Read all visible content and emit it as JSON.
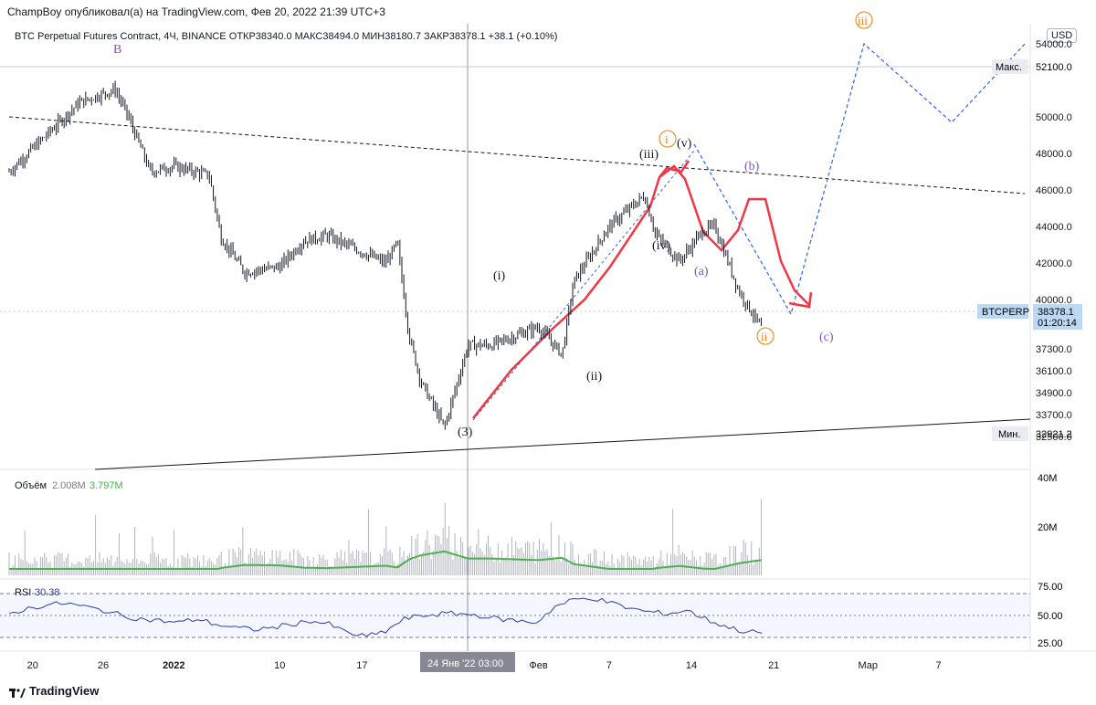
{
  "header": {
    "published": "ChampBoy опубликовал(а) на TradingView.com, Фев 20, 2022 21:39 UTC+3",
    "symbol_line": "BTC Perpetual Futures Contract, 4Ч, BINANCE",
    "open_label": "ОТКР",
    "open": "38340.0",
    "high_label": "МАКС",
    "high": "38494.0",
    "low_label": "МИН",
    "low": "38180.7",
    "close_label": "ЗАКР",
    "close": "38378.1",
    "change": "+38.1 (+0.10%)",
    "currency": "USD"
  },
  "chart_data": [
    {
      "type": "candlestick",
      "series_name": "BTCPERP",
      "y_ticks": [
        "54000.0",
        "52100.0",
        "50000.0",
        "48000.0",
        "46000.0",
        "44000.0",
        "42000.0",
        "40000.0",
        "38378.1",
        "37300.0",
        "36100.0",
        "34900.0",
        "33700.0",
        "32500.0"
      ],
      "y_range": [
        31800,
        54500
      ],
      "price_labels": [
        {
          "name": "Макс.",
          "value": "52100.0"
        },
        {
          "name": "BTCPERP",
          "value": "38378.1",
          "timer": "01:20:14"
        },
        {
          "name": "Мин.",
          "value": "32921.2"
        }
      ],
      "x_ticks": [
        "20",
        "26",
        "2022",
        "10",
        "17",
        "24 Янв '22  03:00",
        "Фев",
        "7",
        "14",
        "21",
        "Мар",
        "7"
      ],
      "crosshair_x_label": "24 Янв '22  03:00",
      "price_path": [
        [
          "Dec 18",
          47000
        ],
        [
          "Dec 21",
          48900
        ],
        [
          "Dec 24",
          50800
        ],
        [
          "Dec 27",
          51500
        ],
        [
          "Dec 28",
          50200
        ],
        [
          "Dec 30",
          47000
        ],
        [
          "Jan 1",
          47300
        ],
        [
          "Jan 4",
          46800
        ],
        [
          "Jan 5",
          43400
        ],
        [
          "Jan 7",
          41500
        ],
        [
          "Jan 10",
          41800
        ],
        [
          "Jan 12",
          43200
        ],
        [
          "Jan 14",
          43500
        ],
        [
          "Jan 17",
          42600
        ],
        [
          "Jan 19",
          42000
        ],
        [
          "Jan 20",
          43100
        ],
        [
          "Jan 21",
          38000
        ],
        [
          "Jan 22",
          35500
        ],
        [
          "Jan 24",
          33000
        ],
        [
          "Jan 26",
          37500
        ],
        [
          "Jan 28",
          37500
        ],
        [
          "Feb 1",
          38500
        ],
        [
          "Feb 3",
          37000
        ],
        [
          "Feb 4",
          41000
        ],
        [
          "Feb 7",
          44000
        ],
        [
          "Feb 10",
          45700
        ],
        [
          "Feb 11",
          43500
        ],
        [
          "Feb 13",
          42100
        ],
        [
          "Feb 15",
          43800
        ],
        [
          "Feb 16",
          44000
        ],
        [
          "Feb 18",
          40500
        ],
        [
          "Feb 20",
          38378
        ]
      ],
      "annotations": {
        "wave_labels": [
          "B",
          "(3)",
          "(i)",
          "(ii)",
          "(iii)",
          "(iv)",
          "(v)",
          "(a)",
          "(b)",
          "(c)",
          "i",
          "ii",
          "iii"
        ]
      }
    },
    {
      "type": "bar",
      "series_name": "Объём",
      "values_label": [
        "2.008M",
        "3.797M"
      ],
      "y_ticks": [
        "40M",
        "20M"
      ]
    },
    {
      "type": "line",
      "series_name": "RSI",
      "last_value": "30.38",
      "y_ticks": [
        "75.00",
        "50.00",
        "25.00"
      ],
      "values": [
        52,
        58,
        62,
        64,
        60,
        56,
        50,
        46,
        44,
        42,
        46,
        40,
        36,
        34,
        36,
        40,
        44,
        40,
        30,
        26,
        32,
        46,
        50,
        52,
        52,
        50,
        46,
        44,
        42,
        60,
        68,
        70,
        64,
        58,
        54,
        52,
        56,
        46,
        38,
        32,
        30
      ]
    }
  ],
  "colors": {
    "candle": "#131722",
    "drawing_red": "#f23645",
    "drawing_blue": "#2962ff",
    "volume_ma": "#4caf50",
    "rsi_line": "#2f3a9e",
    "wave_orange": "#f57c00",
    "wave_purple": "#7e57c2",
    "label_bg": "#bbd9f5"
  },
  "brand": "TradingView"
}
